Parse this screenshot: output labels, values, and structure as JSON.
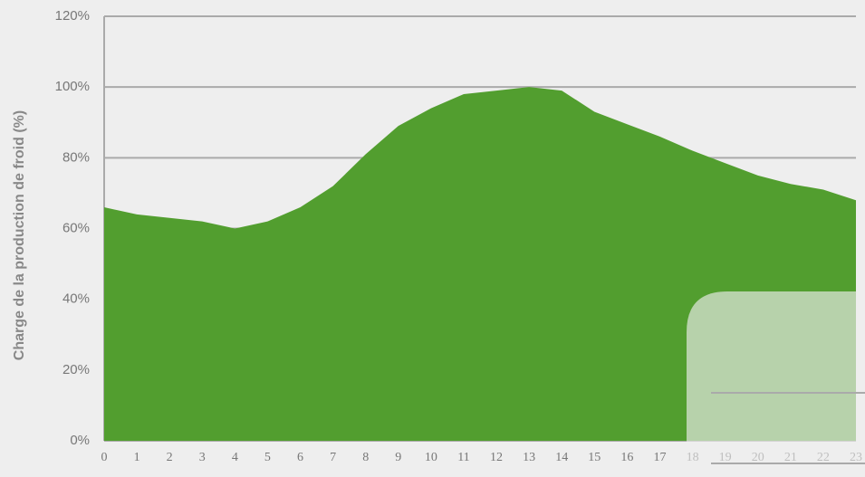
{
  "chart_data": {
    "type": "area",
    "y_label": "Charge de la production de froid (%)",
    "x": [
      0,
      1,
      2,
      3,
      4,
      5,
      6,
      7,
      8,
      9,
      10,
      11,
      12,
      13,
      14,
      15,
      16,
      17,
      18,
      19,
      20,
      21,
      22,
      23
    ],
    "series": [
      {
        "color": "#529e2f",
        "values": [
          66,
          64,
          63,
          62,
          60,
          62,
          66,
          72,
          81,
          89,
          94,
          98,
          99,
          100,
          99,
          93,
          89.5,
          86,
          82,
          78.5,
          75,
          72.6,
          71,
          68
        ]
      }
    ],
    "xlim": [
      0,
      23
    ],
    "xticks": [
      0,
      1,
      2,
      3,
      4,
      5,
      6,
      7,
      8,
      9,
      10,
      11,
      12,
      13,
      14,
      15,
      16,
      17,
      18,
      19,
      20,
      21,
      22,
      23
    ],
    "ylim": [
      0,
      120
    ],
    "yticks": [
      {
        "value": 0,
        "label": "0%"
      },
      {
        "value": 20,
        "label": "20%"
      },
      {
        "value": 40,
        "label": "40%"
      },
      {
        "value": 60,
        "label": "60%"
      },
      {
        "value": 80,
        "label": "80%"
      },
      {
        "value": 100,
        "label": "100%"
      },
      {
        "value": 120,
        "label": "120%"
      }
    ],
    "grid": true
  }
}
